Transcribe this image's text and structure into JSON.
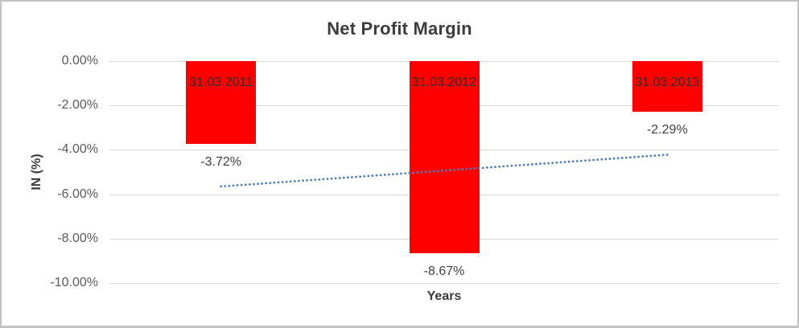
{
  "chart_data": {
    "type": "bar",
    "title": "Net Profit Margin",
    "categories": [
      "31.03.2011",
      "31.03.2012",
      "31.03.2013"
    ],
    "values": [
      -3.72,
      -8.67,
      -2.29
    ],
    "value_labels": [
      "-3.72%",
      "-8.67%",
      "-2.29%"
    ],
    "xlabel": "Years",
    "ylabel": "IN (%)",
    "ylim": [
      -10,
      0
    ],
    "yticks": [
      0,
      -2,
      -4,
      -6,
      -8,
      -10
    ],
    "ytick_labels": [
      "0.00%",
      "-2.00%",
      "-4.00%",
      "-6.00%",
      "-8.00%",
      "-10.00%"
    ],
    "grid": true,
    "legend": "none",
    "bar_color": "#ff0000",
    "bar_label_color": "#2d2d2d",
    "value_label_color": "#404040",
    "axis_text_color": "#595959",
    "title_color": "#3c3c3c",
    "gridline_color": "#d9d9d9",
    "trendline": {
      "type": "linear",
      "style": "dotted",
      "color": "#4e7ec0",
      "start_value": -5.65,
      "end_value": -4.22
    }
  }
}
